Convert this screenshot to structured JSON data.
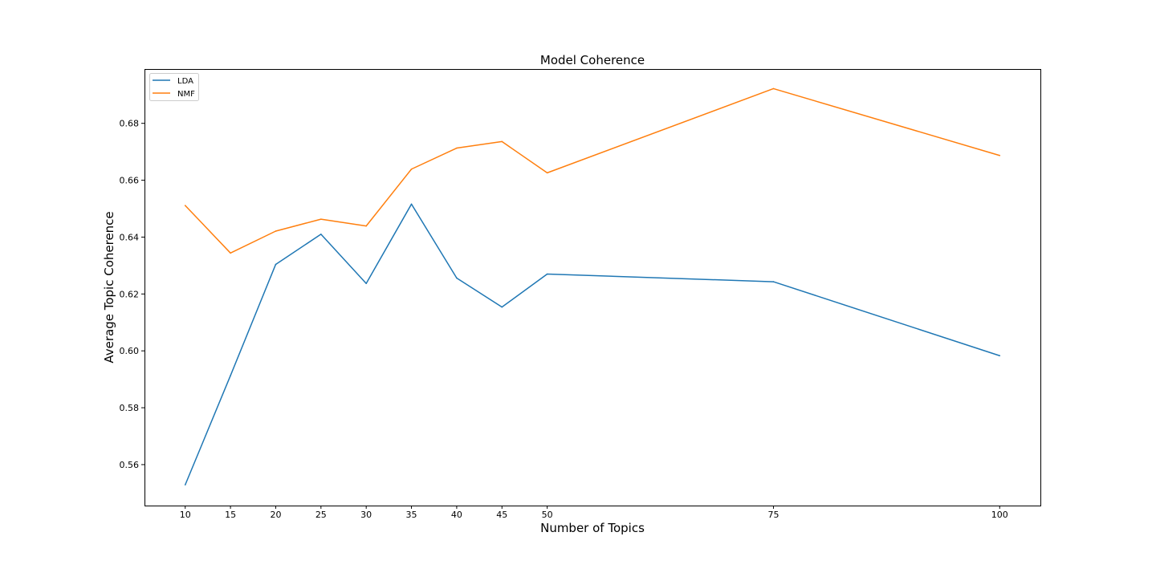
{
  "chart_data": {
    "type": "line",
    "title": "Model Coherence",
    "xlabel": "Number of Topics",
    "ylabel": "Average Topic Coherence",
    "x": [
      10,
      15,
      20,
      25,
      30,
      35,
      40,
      45,
      50,
      75,
      100
    ],
    "x_ticks": [
      "10",
      "15",
      "20",
      "25",
      "30",
      "35",
      "40",
      "45",
      "50",
      "75",
      "100"
    ],
    "y_ticks": [
      "0.56",
      "0.58",
      "0.60",
      "0.62",
      "0.64",
      "0.66",
      "0.68"
    ],
    "xlim": [
      5.5,
      104.5
    ],
    "ylim": [
      0.5456,
      0.6991
    ],
    "grid": false,
    "legend_position": "upper-left",
    "series": [
      {
        "name": "LDA",
        "color": "#1f77b4",
        "values": [
          0.5529,
          0.5913,
          0.6304,
          0.641,
          0.6237,
          0.6516,
          0.6256,
          0.6154,
          0.627,
          0.6243,
          0.5983
        ]
      },
      {
        "name": "NMF",
        "color": "#ff7f0e",
        "values": [
          0.6511,
          0.6344,
          0.6421,
          0.6463,
          0.6439,
          0.6639,
          0.6713,
          0.6736,
          0.6626,
          0.6922,
          0.6687
        ]
      }
    ]
  }
}
